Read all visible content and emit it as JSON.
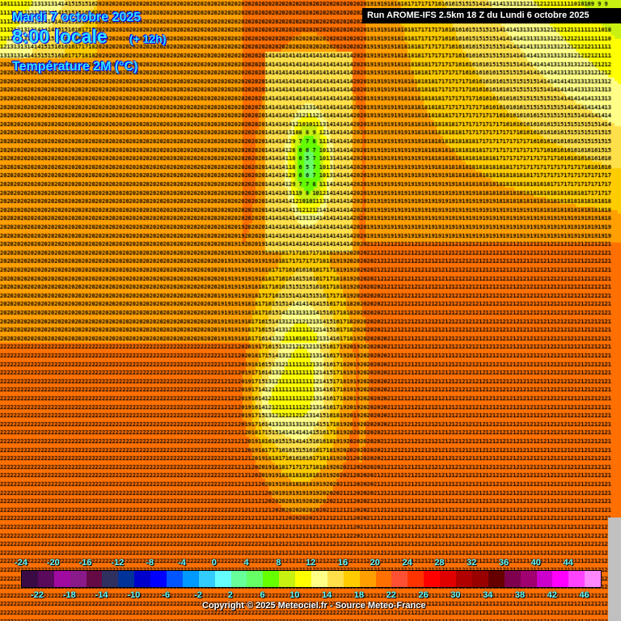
{
  "header": {
    "date": "Mardi 7 octobre 2025",
    "time": "8:00 locale",
    "lead": "(+ 12h)",
    "parameter": "Température 2M (°C)",
    "run": "Run AROME-IFS 2.5km 18 Z du Lundi 6 octobre 2025"
  },
  "legend": {
    "unit": "°C",
    "top_labels": [
      "-24",
      "-20",
      "-16",
      "-12",
      "-8",
      "-4",
      "0",
      "4",
      "8",
      "12",
      "16",
      "20",
      "24",
      "28",
      "32",
      "36",
      "40",
      "44"
    ],
    "bottom_labels": [
      "-22",
      "-18",
      "-14",
      "-10",
      "-6",
      "-2",
      "2",
      "6",
      "10",
      "14",
      "18",
      "22",
      "26",
      "30",
      "34",
      "38",
      "42",
      "46"
    ],
    "colors": [
      "#3a0a45",
      "#5a0a5a",
      "#a00aa0",
      "#8a1a8a",
      "#650a45",
      "#303060",
      "#003399",
      "#0000cc",
      "#0000ff",
      "#0055ff",
      "#0099ff",
      "#33ccff",
      "#66ffff",
      "#66ff99",
      "#66ff66",
      "#66ff00",
      "#c8f010",
      "#ffff00",
      "#ffff88",
      "#ffe04a",
      "#ffcc00",
      "#ff9f00",
      "#ff7000",
      "#ff5033",
      "#ff3300",
      "#ff0000",
      "#e00000",
      "#b00000",
      "#990000",
      "#660000",
      "#800050",
      "#a00070",
      "#cc00cc",
      "#ff00ff",
      "#ff44ff",
      "#ff88ff"
    ]
  },
  "copyright": "Copyright © 2025 Meteociel.fr - Source Meteo-France"
}
